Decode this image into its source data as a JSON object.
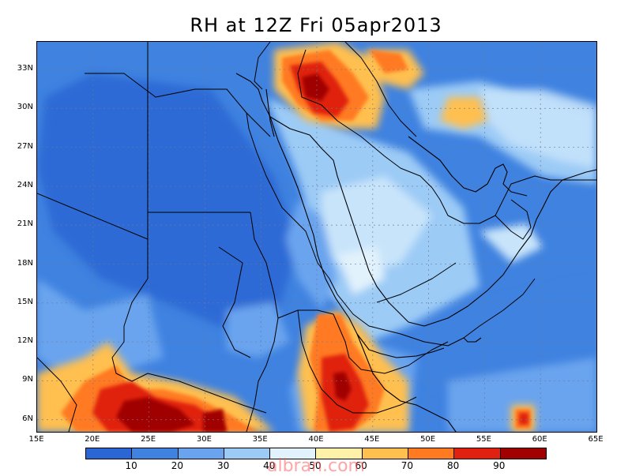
{
  "title": "RH at 12Z Fri 05apr2013",
  "watermark": "albran.com",
  "lat_labels": [
    "33N",
    "30N",
    "27N",
    "24N",
    "21N",
    "18N",
    "15N",
    "12N",
    "9N",
    "6N"
  ],
  "lon_labels": [
    "15E",
    "20E",
    "25E",
    "30E",
    "35E",
    "40E",
    "45E",
    "50E",
    "55E",
    "60E",
    "65E"
  ],
  "colorbar": {
    "colors": [
      "#2a66d4",
      "#3f82e0",
      "#6aa4ee",
      "#9ccbf6",
      "#e2f2fc",
      "#fff2a8",
      "#ffc050",
      "#ff7a20",
      "#e02010",
      "#a00000"
    ],
    "labels": [
      "10",
      "20",
      "30",
      "40",
      "50",
      "60",
      "70",
      "80",
      "90"
    ]
  },
  "map_data": {
    "field": "relative humidity",
    "units": "%",
    "valid_time": "12Z Fri 05apr2013",
    "lon_range": [
      15,
      65
    ],
    "lat_range": [
      4.5,
      35
    ],
    "projection": "lat-lon",
    "grid": "dotted at 3 deg lat, 5 deg lon",
    "features": [
      {
        "region": "NE Iraq / Syria",
        "rh": "80-90"
      },
      {
        "region": "Ethiopian highlands",
        "rh": "70-90"
      },
      {
        "region": "South Sudan / CAR",
        "rh": "80-90"
      },
      {
        "region": "Sahara / Egypt / Sudan",
        "rh": "10-20"
      },
      {
        "region": "Arabian Peninsula",
        "rh": "30-50"
      },
      {
        "region": "Arabian Sea",
        "rh": "20-30"
      }
    ]
  }
}
